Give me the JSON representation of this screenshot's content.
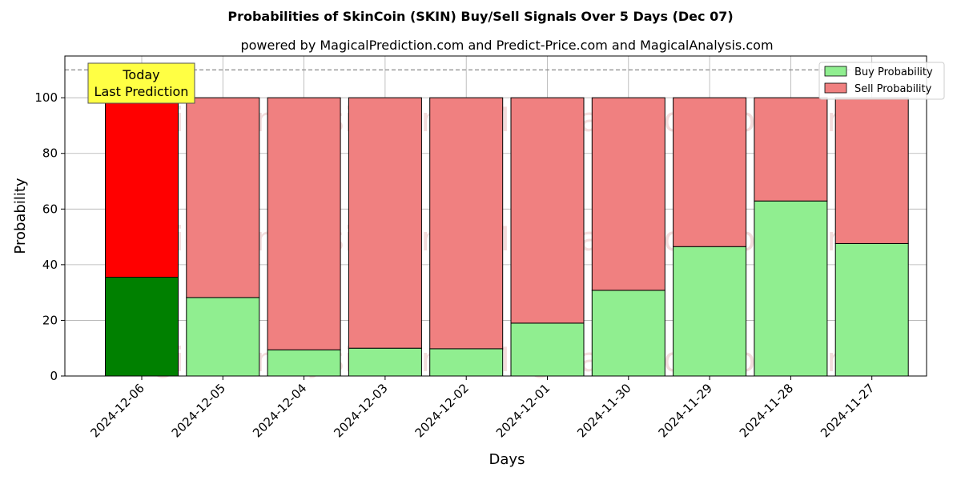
{
  "chart_data": {
    "type": "bar",
    "stacked": true,
    "title": "Probabilities of SkinCoin (SKIN) Buy/Sell Signals Over 5 Days (Dec 07)",
    "subtitle": "powered by MagicalPrediction.com and Predict-Price.com and MagicalAnalysis.com",
    "xlabel": "Days",
    "ylabel": "Probability",
    "ylim": [
      0,
      115
    ],
    "yticks": [
      0,
      20,
      40,
      60,
      80,
      100
    ],
    "grid": true,
    "legend_position": "top-right",
    "reference_line": 110,
    "categories": [
      "2024-12-06",
      "2024-12-05",
      "2024-12-04",
      "2024-12-03",
      "2024-12-02",
      "2024-12-01",
      "2024-11-30",
      "2024-11-29",
      "2024-11-28",
      "2024-11-27"
    ],
    "series": [
      {
        "name": "Buy Probability",
        "values": [
          35.5,
          28.2,
          9.4,
          10.0,
          9.8,
          19.0,
          30.8,
          46.5,
          62.9,
          47.6
        ],
        "color": "#90ee90",
        "highlight_color": "#008000"
      },
      {
        "name": "Sell Probability",
        "values": [
          64.5,
          71.8,
          90.6,
          90.0,
          90.2,
          81.0,
          69.2,
          53.5,
          37.1,
          52.4
        ],
        "color": "#f08080",
        "highlight_color": "#ff0000"
      }
    ],
    "annotation": {
      "lines": [
        "Today",
        "Last Prediction"
      ],
      "background": "#ffff44"
    },
    "watermarks": [
      "MagicalAnalysis.com",
      "MagicalPrediction.com"
    ]
  }
}
